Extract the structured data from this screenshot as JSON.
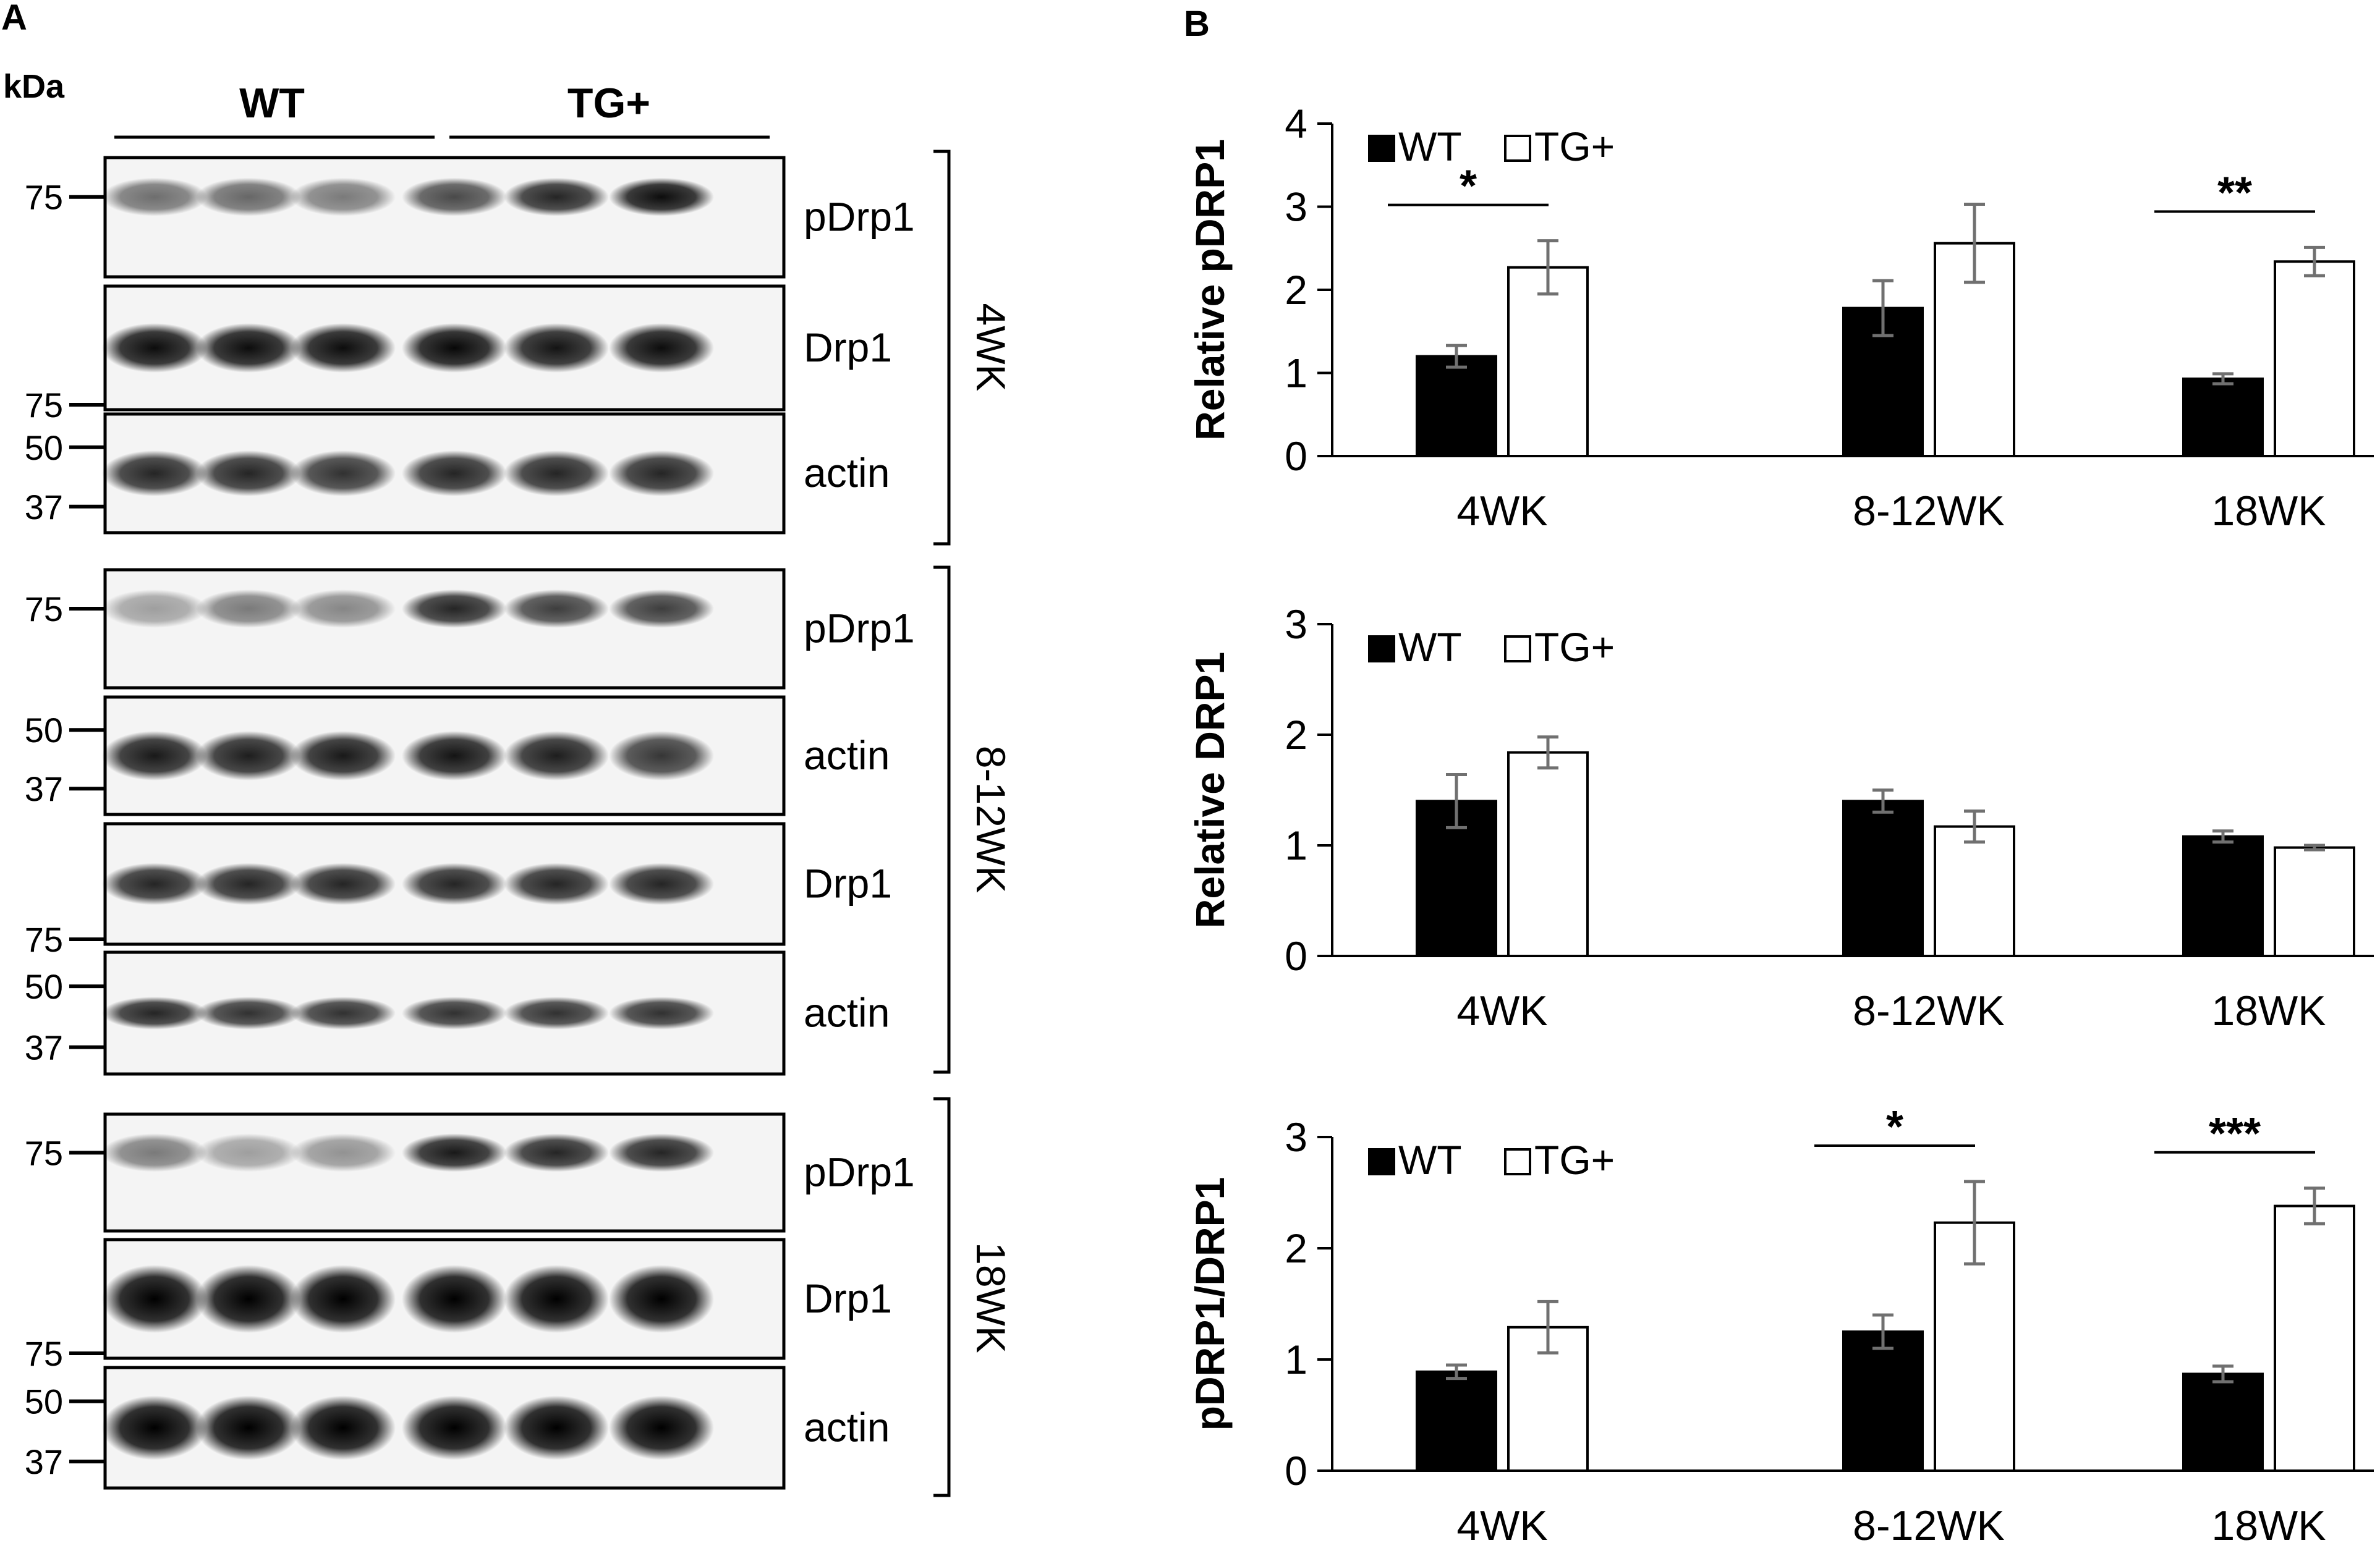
{
  "panelA": {
    "letter": "A",
    "kda": "kDa",
    "groups": [
      "WT",
      "TG+"
    ],
    "sections": [
      {
        "age": "4WK",
        "blots": [
          {
            "label": "pDrp1",
            "markers": [
              "75"
            ],
            "intensity": [
              0.55,
              0.58,
              0.5,
              0.7,
              0.85,
              0.95
            ],
            "thick": 0.6
          },
          {
            "label": "Drp1",
            "markers": [
              "75"
            ],
            "intensity": [
              0.95,
              0.95,
              0.95,
              0.97,
              0.92,
              0.95
            ],
            "thick": 0.9
          },
          {
            "label": "actin",
            "markers": [
              "50",
              "37"
            ],
            "intensity": [
              0.85,
              0.85,
              0.8,
              0.85,
              0.85,
              0.85
            ],
            "thick": 0.8
          }
        ]
      },
      {
        "age": "8-12WK",
        "blots": [
          {
            "label": "pDrp1",
            "markers": [
              "75"
            ],
            "intensity": [
              0.35,
              0.5,
              0.45,
              0.85,
              0.75,
              0.75
            ],
            "thick": 0.6
          },
          {
            "label": "actin",
            "markers": [
              "50",
              "37"
            ],
            "intensity": [
              0.9,
              0.88,
              0.9,
              0.92,
              0.88,
              0.78
            ],
            "thick": 0.9
          },
          {
            "label": "Drp1",
            "markers": [
              "75"
            ],
            "intensity": [
              0.85,
              0.85,
              0.85,
              0.85,
              0.85,
              0.85
            ],
            "thick": 0.7
          },
          {
            "label": "actin",
            "markers": [
              "50",
              "37"
            ],
            "intensity": [
              0.85,
              0.8,
              0.8,
              0.8,
              0.8,
              0.8
            ],
            "thick": 0.45
          }
        ]
      },
      {
        "age": "18WK",
        "blots": [
          {
            "label": "pDrp1",
            "markers": [
              "75"
            ],
            "intensity": [
              0.5,
              0.35,
              0.4,
              0.9,
              0.85,
              0.85
            ],
            "thick": 0.6
          },
          {
            "label": "Drp1",
            "markers": [
              "75"
            ],
            "intensity": [
              1,
              1,
              1,
              1,
              1,
              1
            ],
            "thick": 1.4
          },
          {
            "label": "actin",
            "markers": [
              "50",
              "37"
            ],
            "intensity": [
              1,
              1,
              1,
              1,
              1,
              1
            ],
            "thick": 1.3
          }
        ]
      }
    ]
  },
  "panelB": {
    "letter": "B",
    "legend": [
      "WT",
      "TG+"
    ],
    "colors": {
      "WT": "#000000",
      "TG+": "#ffffff",
      "error": "#707070"
    }
  },
  "chart_data": [
    {
      "type": "bar",
      "ylabel": "Relative pDRP1",
      "categories": [
        "4WK",
        "8-12WK",
        "18WK"
      ],
      "ylim": [
        0,
        4
      ],
      "yticks": [
        0,
        1,
        2,
        3,
        4
      ],
      "legend": "top-left",
      "series": [
        {
          "name": "WT",
          "values": [
            1.2,
            1.78,
            0.93
          ],
          "errors": [
            0.13,
            0.33,
            0.06
          ]
        },
        {
          "name": "TG+",
          "values": [
            2.27,
            2.56,
            2.34
          ],
          "errors": [
            0.32,
            0.47,
            0.17
          ]
        }
      ],
      "significance": [
        {
          "category": "4WK",
          "label": "*"
        },
        {
          "category": "18WK",
          "label": "**"
        }
      ]
    },
    {
      "type": "bar",
      "ylabel": "Relative DRP1",
      "categories": [
        "4WK",
        "8-12WK",
        "18WK"
      ],
      "ylim": [
        0,
        3
      ],
      "yticks": [
        0,
        1,
        2,
        3
      ],
      "legend": "top-left",
      "series": [
        {
          "name": "WT",
          "values": [
            1.4,
            1.4,
            1.08
          ],
          "errors": [
            0.24,
            0.1,
            0.05
          ]
        },
        {
          "name": "TG+",
          "values": [
            1.84,
            1.17,
            0.98
          ],
          "errors": [
            0.14,
            0.14,
            0.02
          ]
        }
      ],
      "significance": []
    },
    {
      "type": "bar",
      "ylabel": "pDRP1/DRP1",
      "categories": [
        "4WK",
        "8-12WK",
        "18WK"
      ],
      "ylim": [
        0,
        3
      ],
      "yticks": [
        0,
        1,
        2,
        3
      ],
      "legend": "top-left",
      "series": [
        {
          "name": "WT",
          "values": [
            0.89,
            1.25,
            0.87
          ],
          "errors": [
            0.06,
            0.15,
            0.07
          ]
        },
        {
          "name": "TG+",
          "values": [
            1.29,
            2.23,
            2.38
          ],
          "errors": [
            0.23,
            0.37,
            0.16
          ]
        }
      ],
      "significance": [
        {
          "category": "8-12WK",
          "label": "*"
        },
        {
          "category": "18WK",
          "label": "***"
        }
      ]
    }
  ]
}
